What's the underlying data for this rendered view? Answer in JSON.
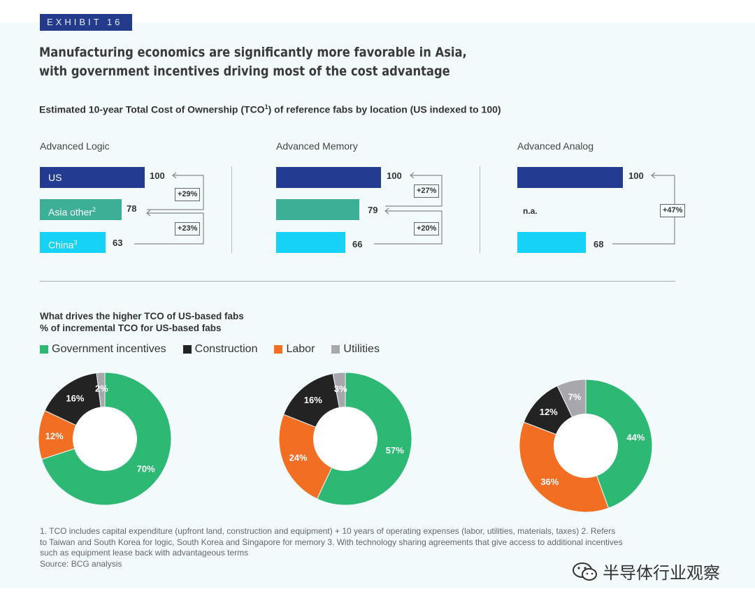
{
  "exhibit_label": "EXHIBIT 16",
  "title_line1": "Manufacturing economics are significantly more favorable in Asia,",
  "title_line2": "with government incentives driving most of the cost advantage",
  "subtitle_pre": "Estimated 10-year Total Cost of Ownership (TCO",
  "subtitle_sup": "1",
  "subtitle_post": ") of reference fabs by location (US indexed to 100)",
  "colors": {
    "us": "#233c92",
    "asia_other": "#3caf96",
    "china": "#16d2f6",
    "gov": "#2db873",
    "construction": "#232323",
    "labor": "#f16e22",
    "utilities": "#a9a7ae"
  },
  "bar_groups": [
    {
      "title": "Advanced Logic",
      "bars": [
        {
          "label": "US",
          "sup": "",
          "value": "100"
        },
        {
          "label": "Asia other",
          "sup": "2",
          "value": "78"
        },
        {
          "label": "China",
          "sup": "3",
          "value": "63"
        }
      ],
      "deltas": [
        "+29%",
        "+23%"
      ]
    },
    {
      "title": "Advanced Memory",
      "bars": [
        {
          "value": "100"
        },
        {
          "value": "79"
        },
        {
          "value": "66"
        }
      ],
      "deltas": [
        "+27%",
        "+20%"
      ]
    },
    {
      "title": "Advanced Analog",
      "bars": [
        {
          "value": "100"
        },
        {
          "value": "n.a."
        },
        {
          "value": "68"
        }
      ],
      "deltas": [
        "+47%"
      ]
    }
  ],
  "section2_line1": "What drives the higher TCO of US-based fabs",
  "section2_line2": "% of incremental TCO for US-based fabs",
  "legend": [
    "Government incentives",
    "Construction",
    "Labor",
    "Utilities"
  ],
  "chart_data": [
    {
      "type": "bar",
      "title": "Advanced Logic",
      "categories": [
        "US",
        "Asia other",
        "China"
      ],
      "values": [
        100,
        78,
        63
      ],
      "differences": [
        "+29%",
        "+23%"
      ]
    },
    {
      "type": "bar",
      "title": "Advanced Memory",
      "categories": [
        "US",
        "Asia other",
        "China"
      ],
      "values": [
        100,
        79,
        66
      ],
      "differences": [
        "+27%",
        "+20%"
      ]
    },
    {
      "type": "bar",
      "title": "Advanced Analog",
      "categories": [
        "US",
        "Asia other",
        "China"
      ],
      "values": [
        100,
        null,
        68
      ],
      "differences": [
        "+47%"
      ]
    },
    {
      "type": "pie",
      "donut": true,
      "categories": [
        "Government incentives",
        "Labor",
        "Construction",
        "Utilities"
      ],
      "values": [
        70,
        12,
        16,
        2
      ],
      "labels": [
        "70%",
        "12%",
        "16%",
        "2%"
      ]
    },
    {
      "type": "pie",
      "donut": true,
      "categories": [
        "Government incentives",
        "Labor",
        "Construction",
        "Utilities"
      ],
      "values": [
        57,
        24,
        16,
        3
      ],
      "labels": [
        "57%",
        "24%",
        "16%",
        "3%"
      ]
    },
    {
      "type": "pie",
      "donut": true,
      "categories": [
        "Government incentives",
        "Labor",
        "Construction",
        "Utilities"
      ],
      "values": [
        44,
        36,
        12,
        7
      ],
      "labels": [
        "44%",
        "36%",
        "12%",
        "7%"
      ]
    }
  ],
  "footnote_line1": "1. TCO includes capital expenditure (upfront land, construction and equipment) + 10 years of operating expenses (labor, utilities, materials, taxes)  2. Refers",
  "footnote_line2": "to Taiwan and South Korea for logic, South Korea and Singapore for memory  3. With technology sharing agreements that give access to additional incentives",
  "footnote_line3": "such as equipment lease back with advantageous terms",
  "source": "Source: BCG analysis",
  "watermark_text": "半导体行业观察",
  "watermark_icon": "wechat-icon"
}
